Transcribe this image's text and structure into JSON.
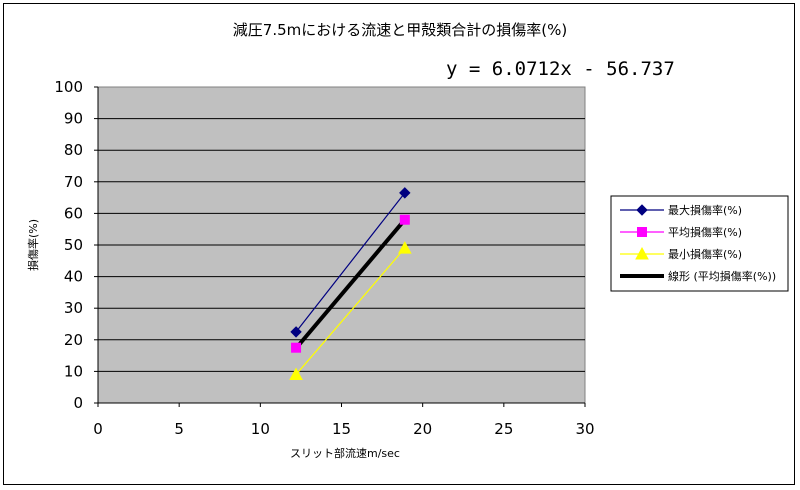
{
  "chart_data": {
    "type": "scatter",
    "title": "減圧7.5mにおける流速と甲殻類合計の損傷率(%)",
    "equation": "y = 6.0712x - 56.737",
    "xlabel": "スリット部流速m/sec",
    "ylabel": "損傷率(%)",
    "xlim": [
      0,
      30
    ],
    "ylim": [
      0,
      100
    ],
    "xticks": [
      "0",
      "5",
      "10",
      "15",
      "20",
      "25",
      "30"
    ],
    "yticks": [
      "0",
      "10",
      "20",
      "30",
      "40",
      "50",
      "60",
      "70",
      "80",
      "90",
      "100"
    ],
    "grid": "horizontal",
    "plot_background": "#c0c0c0",
    "legend_position": "right",
    "series": [
      {
        "name": "最大損傷率(%)",
        "color": "#000080",
        "marker": "diamond",
        "x": [
          12.2,
          18.9
        ],
        "y": [
          22.5,
          66.5
        ]
      },
      {
        "name": "平均損傷率(%)",
        "color": "#ff00ff",
        "marker": "square",
        "x": [
          12.2,
          18.9
        ],
        "y": [
          17.5,
          58
        ]
      },
      {
        "name": "最小損傷率(%)",
        "color": "#ffff00",
        "marker": "triangle",
        "x": [
          12.2,
          18.9
        ],
        "y": [
          9,
          49
        ]
      }
    ],
    "trendline": {
      "name": "線形 (平均損傷率(%))",
      "color": "#000000",
      "slope": 6.0712,
      "intercept": -56.737,
      "x_range": [
        12.2,
        18.9
      ]
    }
  }
}
